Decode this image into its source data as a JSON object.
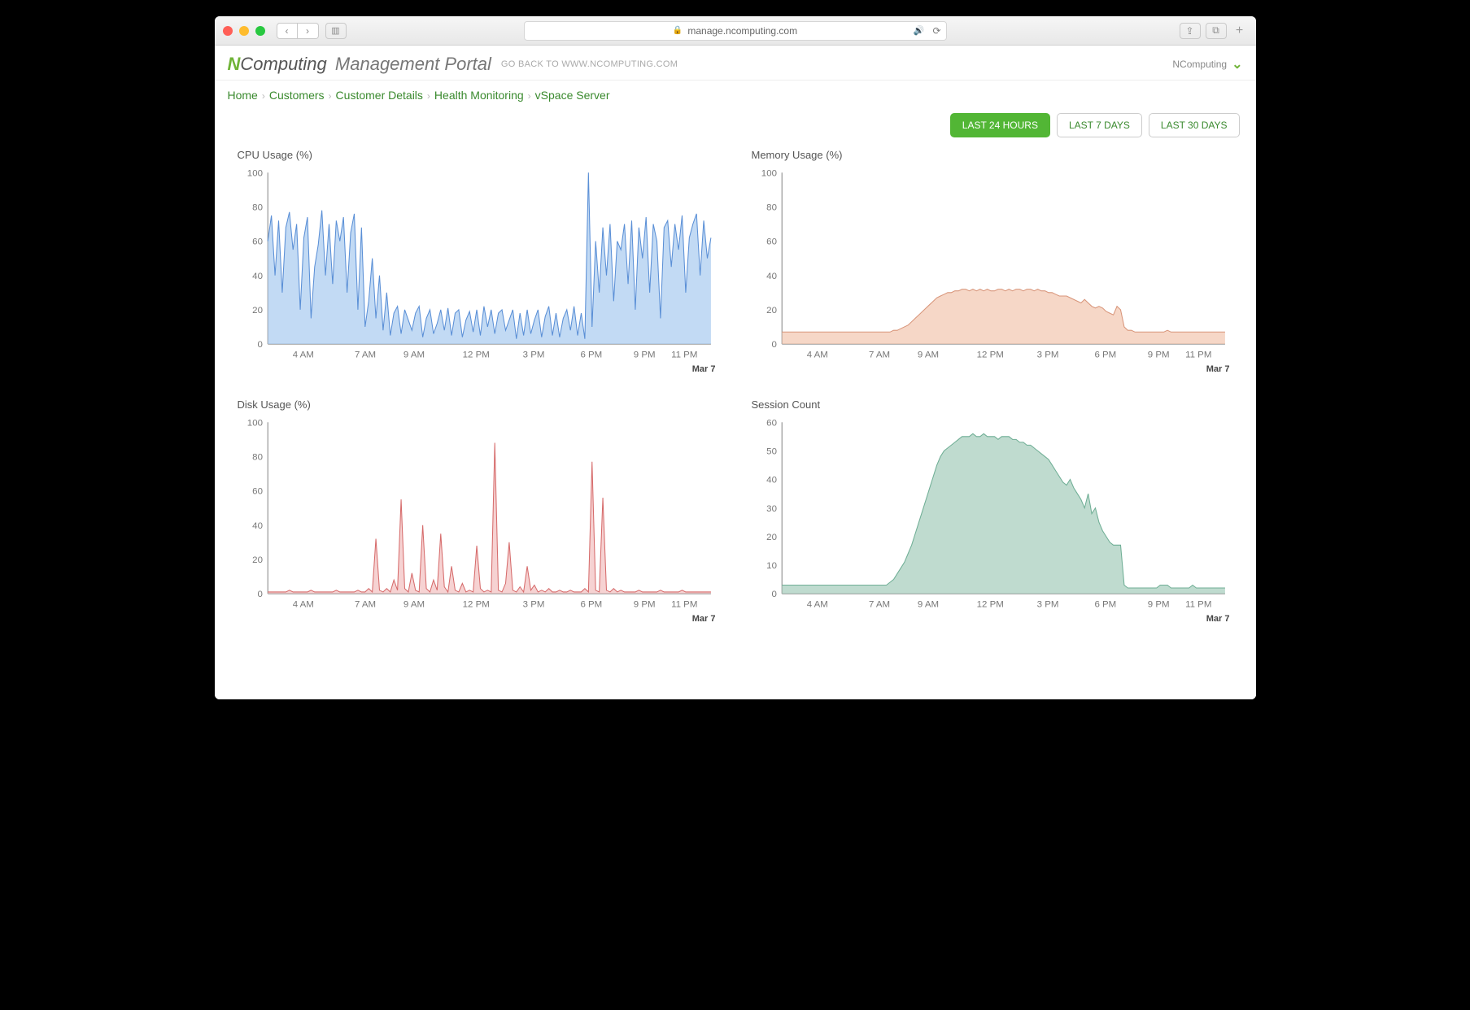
{
  "browser": {
    "url_display": "manage.ncomputing.com",
    "secure": true
  },
  "header": {
    "logo_prefix": "N",
    "logo_text": "Computing",
    "portal_label": "Management Portal",
    "goback_label": "GO BACK TO WWW.NCOMPUTING.COM",
    "user_label": "NComputing"
  },
  "breadcrumbs": [
    {
      "label": "Home"
    },
    {
      "label": "Customers"
    },
    {
      "label": "Customer Details"
    },
    {
      "label": "Health Monitoring"
    },
    {
      "label": "vSpace Server"
    }
  ],
  "time_ranges": [
    {
      "label": "LAST 24 HOURS",
      "active": true
    },
    {
      "label": "LAST 7 DAYS",
      "active": false
    },
    {
      "label": "LAST 30 DAYS",
      "active": false
    }
  ],
  "axis": {
    "x_labels": [
      "4 AM",
      "7 AM",
      "9 AM",
      "12 PM",
      "3 PM",
      "6 PM",
      "9 PM",
      "11 PM"
    ],
    "date_label": "Mar 7"
  },
  "charts": {
    "cpu": {
      "title": "CPU Usage (%)",
      "type": "area",
      "ylim": [
        0,
        100
      ],
      "ytick_step": 20,
      "stroke": "#5a8fd6",
      "fill": "#aecdf0",
      "fill_opacity": 0.75,
      "line_width": 1,
      "values": [
        60,
        75,
        40,
        72,
        30,
        68,
        77,
        55,
        70,
        20,
        62,
        74,
        15,
        45,
        58,
        78,
        40,
        70,
        35,
        72,
        60,
        74,
        30,
        65,
        76,
        20,
        68,
        10,
        25,
        50,
        15,
        40,
        8,
        30,
        5,
        18,
        22,
        6,
        20,
        14,
        8,
        18,
        22,
        4,
        15,
        20,
        6,
        12,
        20,
        8,
        21,
        5,
        18,
        20,
        4,
        14,
        19,
        7,
        20,
        5,
        22,
        10,
        20,
        6,
        18,
        20,
        8,
        14,
        20,
        3,
        18,
        5,
        20,
        6,
        14,
        20,
        4,
        16,
        22,
        5,
        18,
        4,
        15,
        20,
        8,
        22,
        5,
        18,
        3,
        100,
        10,
        60,
        30,
        68,
        40,
        70,
        25,
        60,
        55,
        70,
        35,
        72,
        20,
        68,
        50,
        74,
        30,
        70,
        60,
        15,
        68,
        72,
        45,
        70,
        55,
        75,
        30,
        62,
        70,
        76,
        40,
        72,
        50,
        62
      ]
    },
    "memory": {
      "title": "Memory Usage (%)",
      "type": "area",
      "ylim": [
        0,
        100
      ],
      "ytick_step": 20,
      "stroke": "#d8957a",
      "fill": "#f2c6af",
      "fill_opacity": 0.7,
      "line_width": 1,
      "values": [
        7,
        7,
        7,
        7,
        7,
        7,
        7,
        7,
        7,
        7,
        7,
        7,
        7,
        7,
        7,
        7,
        7,
        7,
        7,
        7,
        7,
        7,
        7,
        7,
        7,
        7,
        7,
        7,
        7,
        7,
        7,
        8,
        8,
        9,
        10,
        11,
        13,
        15,
        17,
        19,
        21,
        23,
        25,
        27,
        28,
        29,
        30,
        30,
        31,
        31,
        32,
        32,
        31,
        32,
        31,
        32,
        31,
        32,
        31,
        31,
        32,
        32,
        31,
        32,
        31,
        32,
        32,
        31,
        32,
        32,
        31,
        32,
        31,
        31,
        30,
        30,
        29,
        28,
        28,
        28,
        27,
        26,
        25,
        24,
        26,
        24,
        22,
        21,
        22,
        21,
        19,
        18,
        17,
        22,
        20,
        10,
        8,
        8,
        7,
        7,
        7,
        7,
        7,
        7,
        7,
        7,
        7,
        8,
        7,
        7,
        7,
        7,
        7,
        7,
        7,
        7,
        7,
        7,
        7,
        7,
        7,
        7,
        7,
        7
      ]
    },
    "disk": {
      "title": "Disk Usage (%)",
      "type": "area",
      "ylim": [
        0,
        100
      ],
      "ytick_step": 20,
      "stroke": "#d66b6b",
      "fill": "#f0b4b4",
      "fill_opacity": 0.6,
      "line_width": 1,
      "values": [
        1,
        1,
        1,
        1,
        1,
        1,
        2,
        1,
        1,
        1,
        1,
        1,
        2,
        1,
        1,
        1,
        1,
        1,
        1,
        2,
        1,
        1,
        1,
        1,
        1,
        2,
        1,
        1,
        3,
        1,
        32,
        2,
        1,
        3,
        1,
        8,
        2,
        55,
        3,
        1,
        12,
        2,
        1,
        40,
        3,
        1,
        8,
        2,
        35,
        4,
        1,
        16,
        2,
        1,
        6,
        1,
        2,
        1,
        28,
        3,
        1,
        2,
        1,
        88,
        2,
        1,
        6,
        30,
        2,
        1,
        4,
        1,
        16,
        2,
        5,
        1,
        2,
        1,
        3,
        1,
        1,
        2,
        1,
        1,
        2,
        1,
        1,
        1,
        3,
        1,
        77,
        2,
        1,
        56,
        2,
        1,
        3,
        1,
        2,
        1,
        1,
        1,
        1,
        2,
        1,
        1,
        1,
        1,
        1,
        2,
        1,
        1,
        1,
        1,
        1,
        2,
        1,
        1,
        1,
        1,
        1,
        1,
        1,
        1
      ]
    },
    "sessions": {
      "title": "Session Count",
      "type": "area",
      "ylim": [
        0,
        60
      ],
      "ytick_step": 10,
      "stroke": "#6fae95",
      "fill": "#a9cfbf",
      "fill_opacity": 0.75,
      "line_width": 1,
      "values": [
        3,
        3,
        3,
        3,
        3,
        3,
        3,
        3,
        3,
        3,
        3,
        3,
        3,
        3,
        3,
        3,
        3,
        3,
        3,
        3,
        3,
        3,
        3,
        3,
        3,
        3,
        3,
        3,
        3,
        3,
        4,
        5,
        7,
        9,
        11,
        14,
        17,
        21,
        25,
        29,
        33,
        37,
        41,
        45,
        48,
        50,
        51,
        52,
        53,
        54,
        55,
        55,
        55,
        56,
        55,
        55,
        56,
        55,
        55,
        55,
        54,
        55,
        55,
        55,
        54,
        54,
        53,
        53,
        52,
        52,
        51,
        50,
        49,
        48,
        47,
        45,
        43,
        41,
        39,
        38,
        40,
        37,
        35,
        33,
        30,
        35,
        28,
        30,
        25,
        22,
        20,
        18,
        17,
        17,
        17,
        3,
        2,
        2,
        2,
        2,
        2,
        2,
        2,
        2,
        2,
        3,
        3,
        3,
        2,
        2,
        2,
        2,
        2,
        2,
        3,
        2,
        2,
        2,
        2,
        2,
        2,
        2,
        2,
        2
      ]
    }
  },
  "colors": {
    "background": "#ffffff",
    "axis_text": "#777777",
    "crumb_link": "#3a8a2e",
    "active_range_bg": "#52b635",
    "range_border": "#cccccc"
  }
}
